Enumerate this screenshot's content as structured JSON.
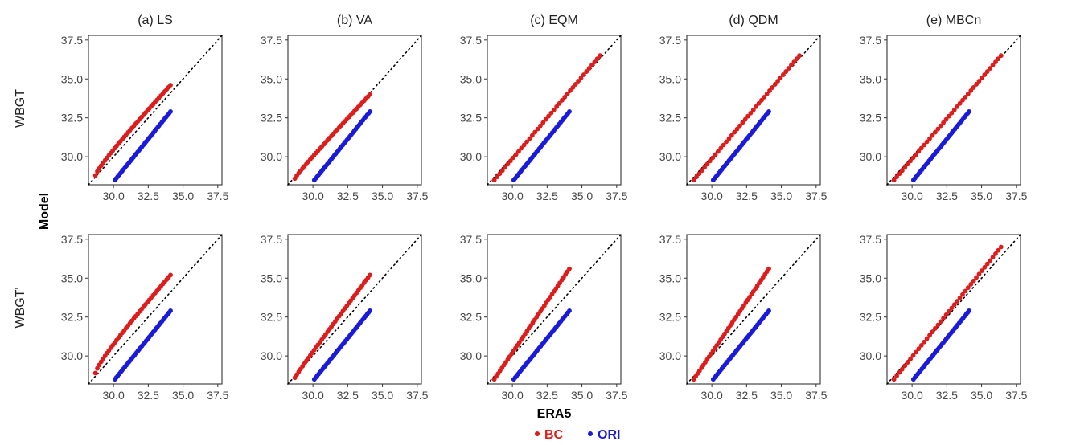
{
  "figure": {
    "xlabel": "ERA5",
    "ylabel": "Model",
    "row_labels": [
      "WBGT",
      "WBGT'"
    ],
    "col_titles": [
      "(a) LS",
      "(b) VA",
      "(c) EQM",
      "(d) QDM",
      "(e) MBCn"
    ],
    "legend": [
      {
        "label": "BC",
        "color": "#dd1c1c"
      },
      {
        "label": "ORI",
        "color": "#1a1adb"
      }
    ]
  },
  "chart_data": {
    "type": "scatter",
    "xlim": [
      28.2,
      37.8
    ],
    "ylim": [
      28.2,
      37.8
    ],
    "ticks": [
      30.0,
      32.5,
      35.0,
      37.5
    ],
    "tick_labels": [
      "30.0",
      "32.5",
      "35.0",
      "37.5"
    ],
    "identity_line": true,
    "grid": false,
    "legend_position": "bottom",
    "n_points": 40,
    "era5_min": 28.7,
    "era5_max": 34.1,
    "ori": {
      "x_min": 30.1,
      "x_max": 34.1,
      "y_min": 28.5,
      "y_max": 32.9
    },
    "panels": [
      {
        "row": "WBGT",
        "method": "(a) LS",
        "bc_x_max": 34.1,
        "bc_y_range": [
          28.8,
          34.6
        ],
        "bc_curve": 0.55
      },
      {
        "row": "WBGT",
        "method": "(b) VA",
        "bc_x_max": 34.1,
        "bc_y_range": [
          28.6,
          34.0
        ],
        "bc_curve": 0.4
      },
      {
        "row": "WBGT",
        "method": "(c) EQM",
        "bc_x_max": 36.3,
        "bc_y_range": [
          28.5,
          36.5
        ],
        "bc_curve": 0.0
      },
      {
        "row": "WBGT",
        "method": "(d) QDM",
        "bc_x_max": 36.3,
        "bc_y_range": [
          28.5,
          36.5
        ],
        "bc_curve": 0.0
      },
      {
        "row": "WBGT",
        "method": "(e) MBCn",
        "bc_x_max": 36.4,
        "bc_y_range": [
          28.5,
          36.5
        ],
        "bc_curve": 0.0
      },
      {
        "row": "WBGT'",
        "method": "(a) LS",
        "bc_x_max": 34.1,
        "bc_y_range": [
          28.9,
          35.2
        ],
        "bc_curve": 0.6
      },
      {
        "row": "WBGT'",
        "method": "(b) VA",
        "bc_x_max": 34.1,
        "bc_y_range": [
          28.6,
          35.2
        ],
        "bc_curve": 0.3
      },
      {
        "row": "WBGT'",
        "method": "(c) EQM",
        "bc_x_max": 34.1,
        "bc_y_range": [
          28.5,
          35.6
        ],
        "bc_curve": 0.0
      },
      {
        "row": "WBGT'",
        "method": "(d) QDM",
        "bc_x_max": 34.1,
        "bc_y_range": [
          28.5,
          35.6
        ],
        "bc_curve": 0.0
      },
      {
        "row": "WBGT'",
        "method": "(e) MBCn",
        "bc_x_max": 36.4,
        "bc_y_range": [
          28.5,
          37.0
        ],
        "bc_curve": 0.0
      }
    ]
  }
}
